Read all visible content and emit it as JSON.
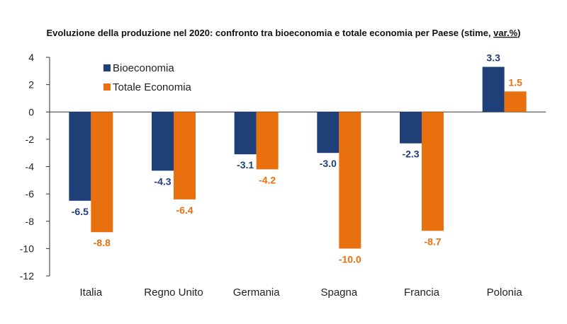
{
  "chart_data": {
    "type": "bar",
    "title_main": "Evoluzione della produzione nel 2020: confronto tra bioeconomia e totale economia per Paese (stime, ",
    "title_link": "var.%",
    "title_end": ")",
    "categories": [
      "Italia",
      "Regno Unito",
      "Germania",
      "Spagna",
      "Francia",
      "Polonia"
    ],
    "series": [
      {
        "name": "Bioeconomia",
        "color": "#1F3F78",
        "values": [
          -6.5,
          -4.3,
          -3.1,
          -3.0,
          -2.3,
          3.3
        ],
        "labels": [
          "-6.5",
          "-4.3",
          "-3.1",
          "-3.0",
          "-2.3",
          "3.3"
        ]
      },
      {
        "name": "Totale Economia",
        "color": "#E8700F",
        "values": [
          -8.8,
          -6.4,
          -4.2,
          -10.0,
          -8.7,
          1.5
        ],
        "labels": [
          "-8.8",
          "-6.4",
          "-4.2",
          "-10.0",
          "-8.7",
          "1.5"
        ]
      }
    ],
    "ylim": [
      -12,
      4
    ],
    "yticks": [
      "4",
      "2",
      "0",
      "-2",
      "-4",
      "-6",
      "-8",
      "-10",
      "-12"
    ],
    "legend_position": "top-left",
    "grid": false
  }
}
